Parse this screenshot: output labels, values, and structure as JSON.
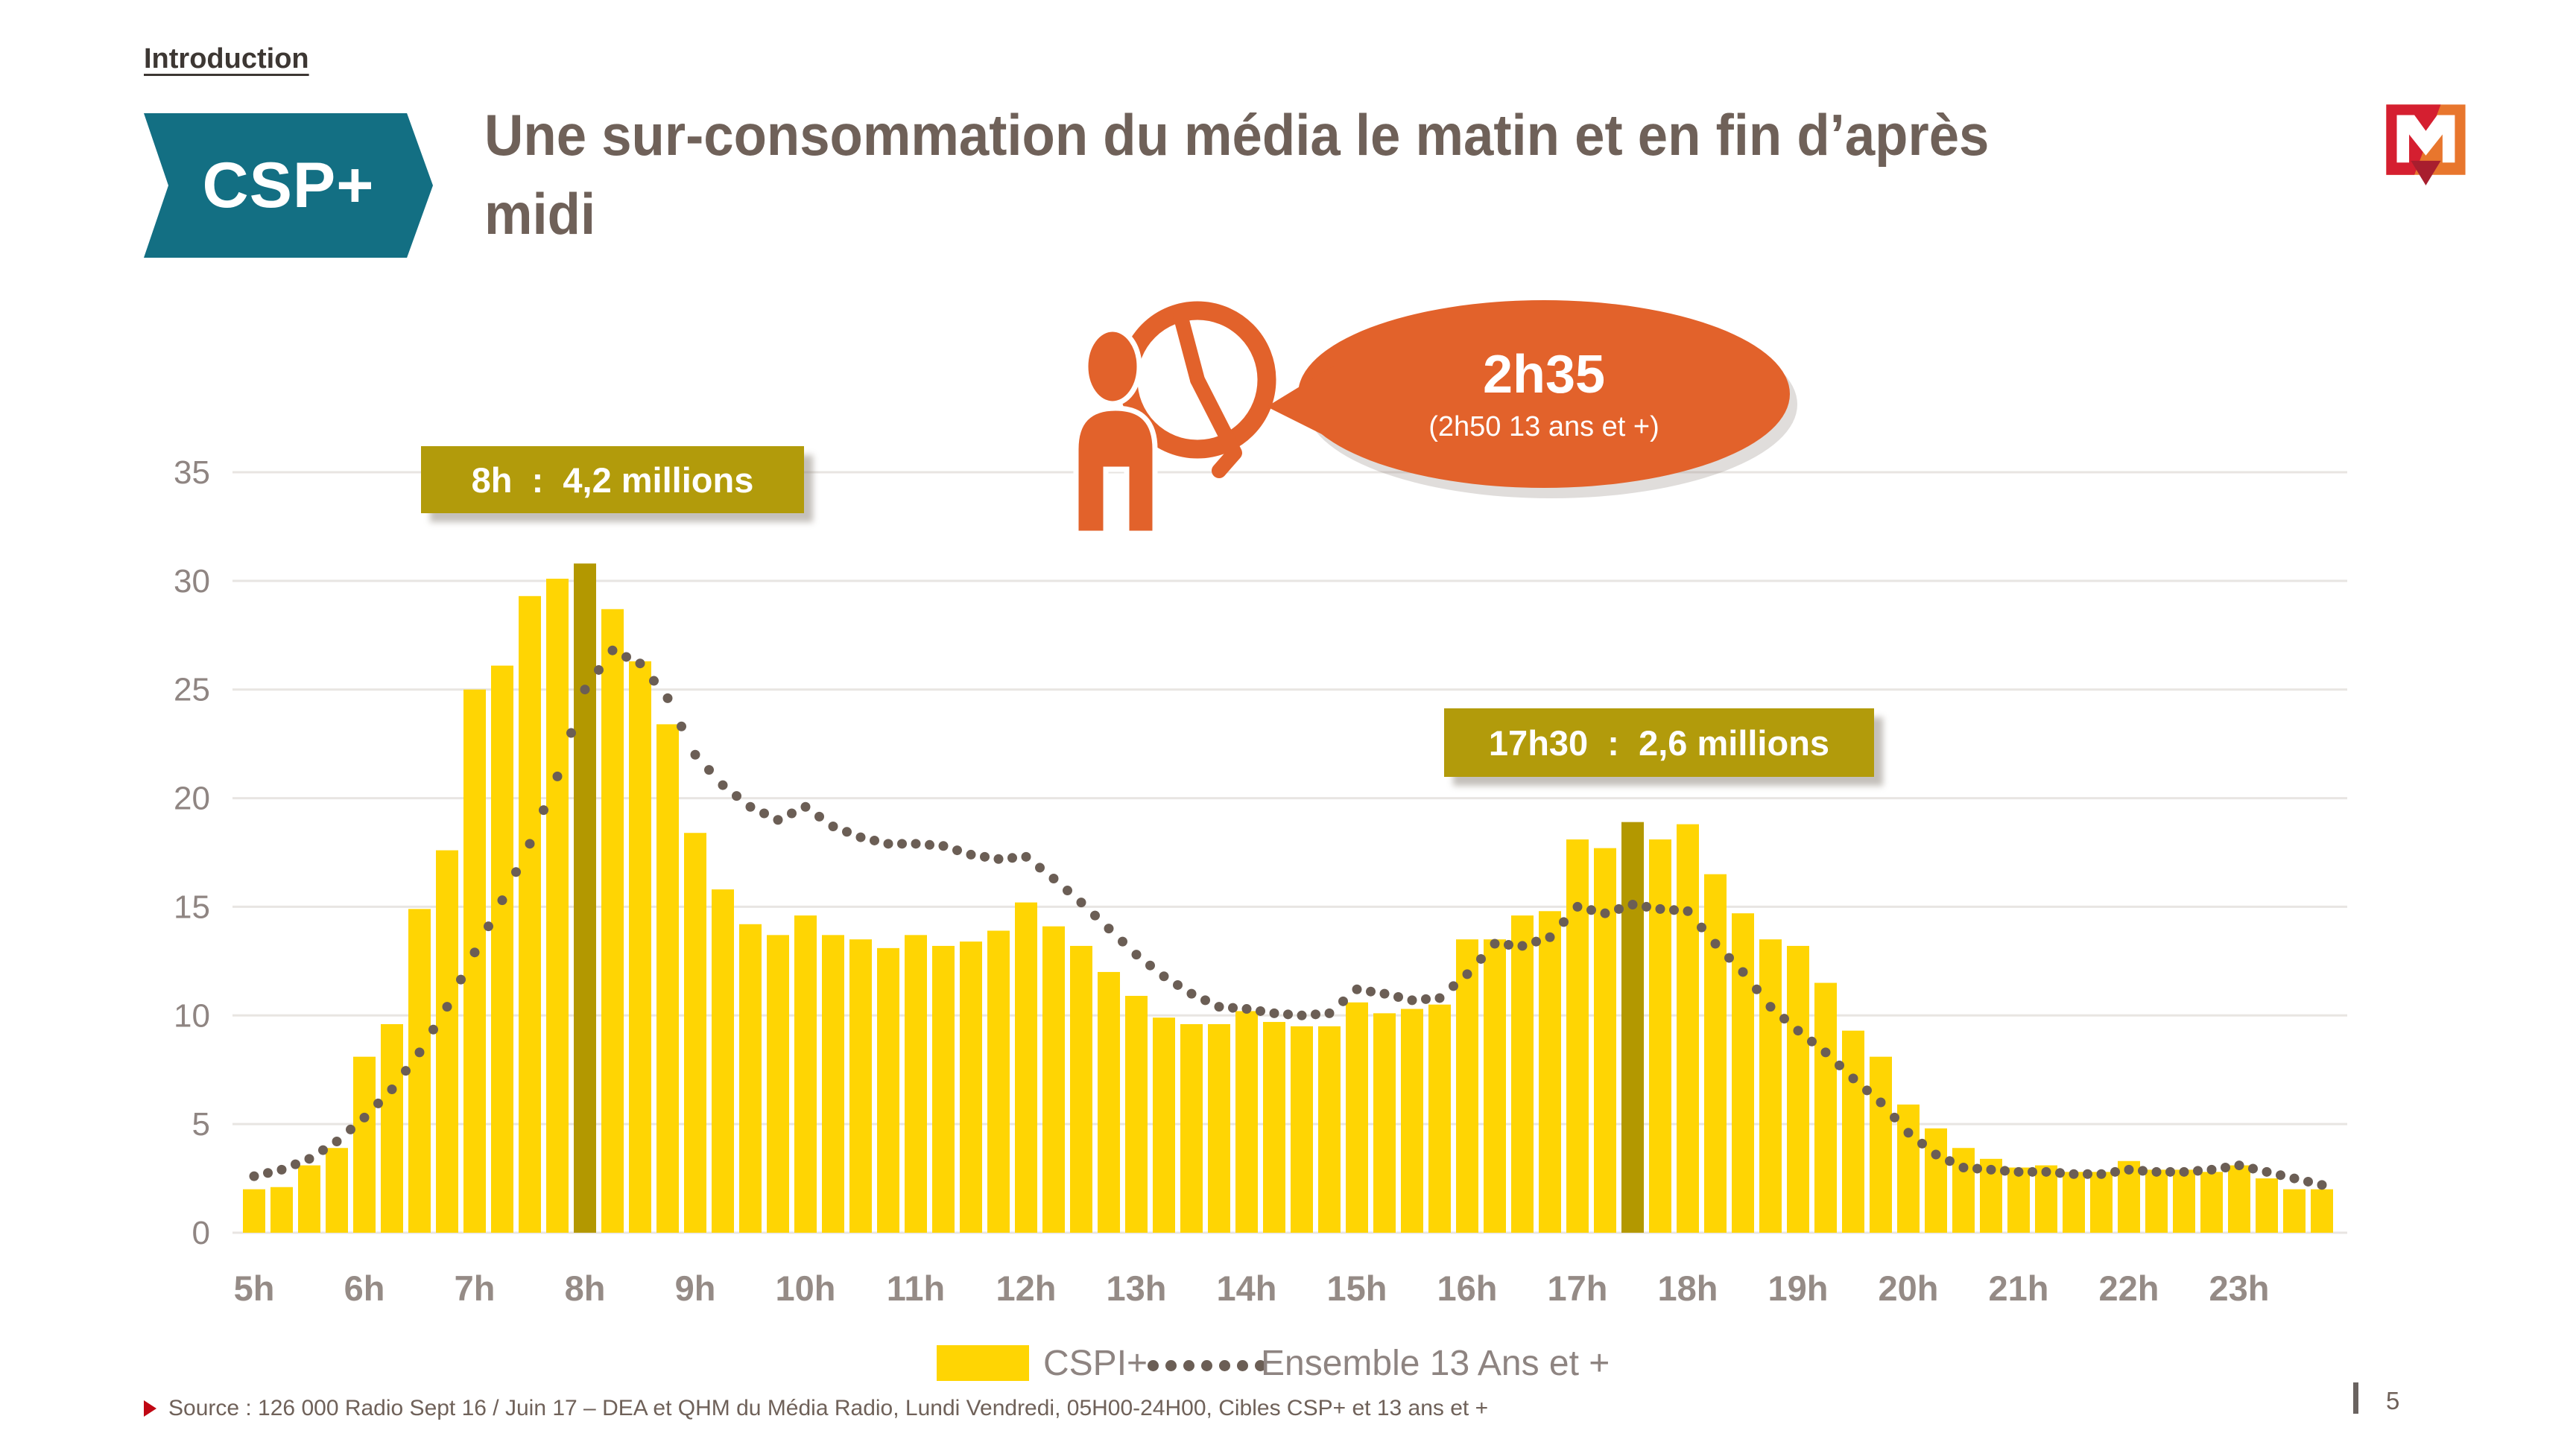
{
  "slide": {
    "eyebrow": "Introduction",
    "badge_label": "CSP+",
    "title_line1": "Une sur-consommation du média le matin et en fin d’après",
    "title_line2": "midi",
    "page_number": "5",
    "source_text": "Source : 126 000 Radio Sept 16 / Juin 17 – DEA et QHM du Média Radio, Lundi Vendredi, 05H00-24H00, Cibles CSP+ et 13 ans et +"
  },
  "infographic": {
    "icon": "person-looking-at-clock",
    "main_value": "2h35",
    "sub_value": "(2h50 13 ans et +)"
  },
  "callouts": [
    {
      "label": "8h  :  4,2 millions"
    },
    {
      "label": "17h30  :  2,6 millions"
    }
  ],
  "legend": {
    "bar_label": "CSPI+",
    "line_label": "Ensemble 13 Ans et +"
  },
  "colors": {
    "bar": "#FFD503",
    "bar_highlight": "#B39800",
    "dotted_line": "#6B5E55",
    "grid": "#E8E5E2",
    "axis_text": "#8F8582",
    "hour_text": "#958B86",
    "callout_bg": "#B29B0B",
    "accent_orange": "#E2622B",
    "badge_teal": "#136F83",
    "title_text": "#6F6159",
    "source_red": "#C00713"
  },
  "chart_data": {
    "type": "bar",
    "note": "bars = CSPI+ quarter-hour audience, dotted line = Ensemble 13 Ans et +",
    "x_start": "5h00",
    "x_step_minutes": 15,
    "categories_hours": [
      "5h",
      "6h",
      "7h",
      "8h",
      "9h",
      "10h",
      "11h",
      "12h",
      "13h",
      "14h",
      "15h",
      "16h",
      "17h",
      "18h",
      "19h",
      "20h",
      "21h",
      "22h",
      "23h"
    ],
    "yticks": [
      0,
      5,
      10,
      15,
      20,
      25,
      30,
      35
    ],
    "ylim": [
      0,
      35
    ],
    "grid": true,
    "highlight_indices": [
      12,
      50
    ],
    "series": [
      {
        "name": "CSPI+",
        "type": "bar",
        "values": [
          2.0,
          2.1,
          3.1,
          3.9,
          8.1,
          9.6,
          14.9,
          17.6,
          25.0,
          26.1,
          29.3,
          30.1,
          30.8,
          28.7,
          26.3,
          23.4,
          18.4,
          15.8,
          14.2,
          13.7,
          14.6,
          13.7,
          13.5,
          13.1,
          13.7,
          13.2,
          13.4,
          13.9,
          15.2,
          14.1,
          13.2,
          12.0,
          10.9,
          9.9,
          9.6,
          9.6,
          10.2,
          9.7,
          9.5,
          9.5,
          10.6,
          10.1,
          10.3,
          10.5,
          13.5,
          13.5,
          14.6,
          14.8,
          18.1,
          17.7,
          18.9,
          18.1,
          18.8,
          16.5,
          14.7,
          13.5,
          13.2,
          11.5,
          9.3,
          8.1,
          5.9,
          4.8,
          3.9,
          3.4,
          3.0,
          3.1,
          2.8,
          2.8,
          3.3,
          2.9,
          2.9,
          2.8,
          3.1,
          2.5,
          2.0,
          2.0
        ]
      },
      {
        "name": "Ensemble 13 Ans et +",
        "type": "dotted-line",
        "values": [
          2.6,
          2.9,
          3.4,
          4.2,
          5.3,
          6.6,
          8.3,
          10.4,
          12.9,
          15.3,
          17.9,
          21.0,
          25.0,
          26.8,
          26.2,
          24.6,
          22.0,
          20.6,
          19.6,
          19.0,
          19.6,
          18.7,
          18.2,
          17.9,
          17.9,
          17.8,
          17.4,
          17.2,
          17.3,
          16.3,
          15.2,
          14.0,
          12.8,
          11.8,
          11.0,
          10.4,
          10.3,
          10.1,
          10.0,
          10.1,
          11.2,
          11.0,
          10.7,
          10.8,
          11.9,
          13.3,
          13.2,
          13.6,
          15.0,
          14.7,
          15.1,
          14.9,
          14.8,
          13.3,
          12.0,
          10.4,
          9.3,
          8.3,
          7.1,
          6.0,
          4.6,
          3.6,
          3.0,
          2.9,
          2.8,
          2.8,
          2.7,
          2.7,
          2.9,
          2.8,
          2.8,
          2.9,
          3.1,
          2.8,
          2.5,
          2.2
        ]
      }
    ]
  }
}
